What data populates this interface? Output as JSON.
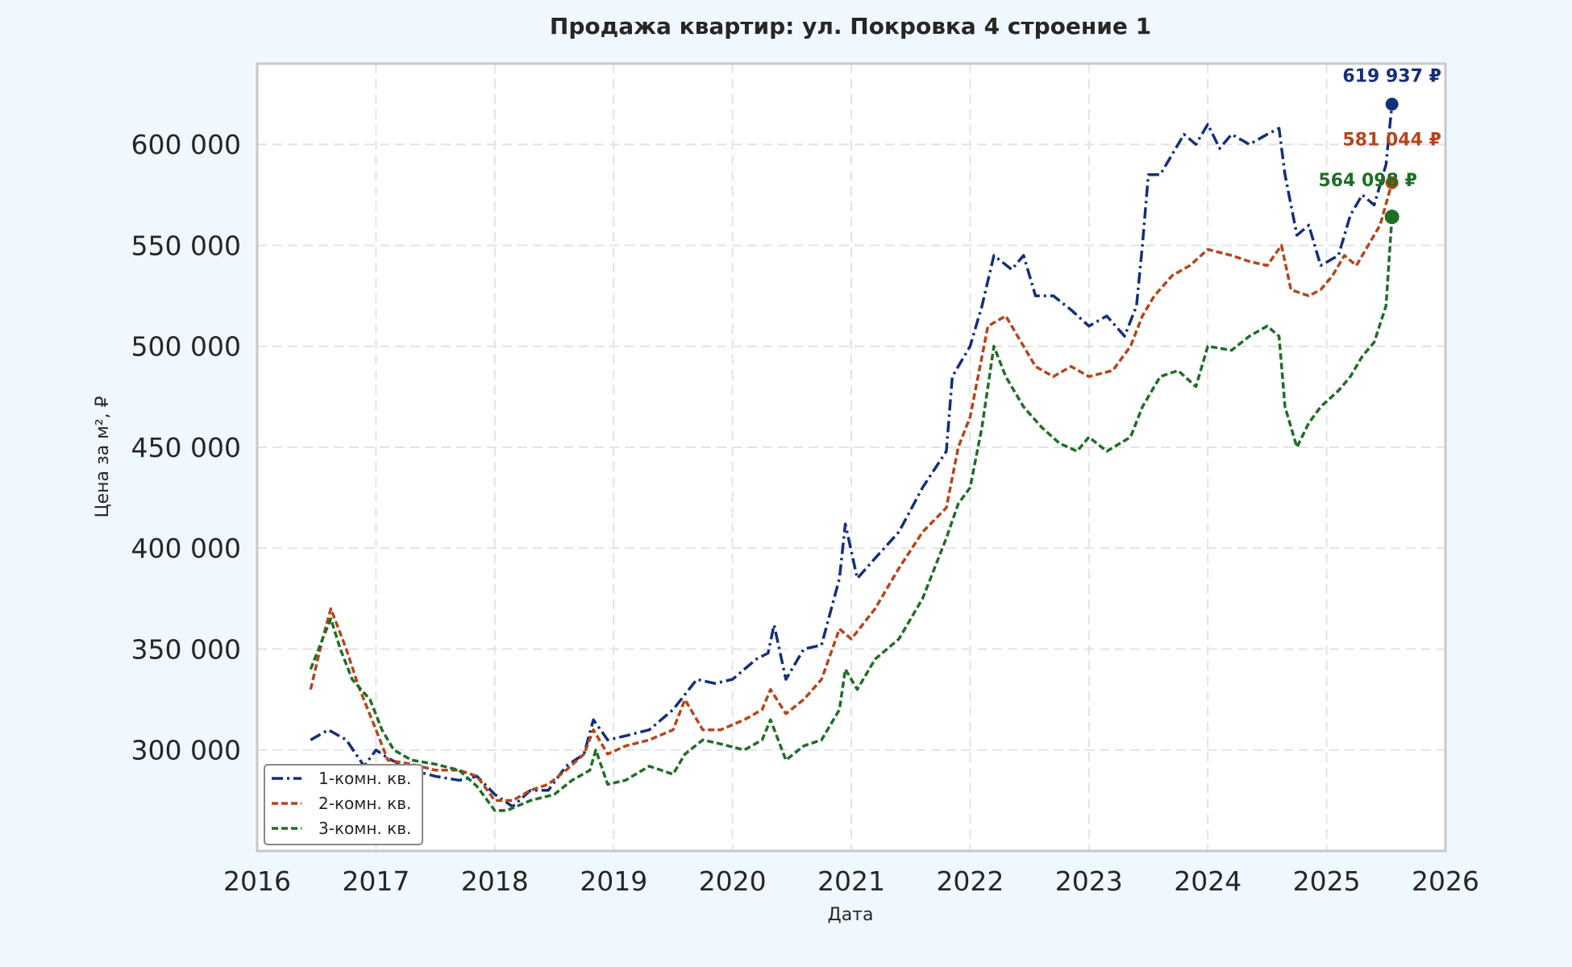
{
  "chart_data": {
    "type": "line",
    "title": "Продажа квартир: ул. Покровка 4 строение 1",
    "xlabel": "Дата",
    "ylabel": "Цена за м², ₽",
    "xlim": [
      2016,
      2026
    ],
    "ylim": [
      250000,
      640000
    ],
    "x_ticks": [
      "2016",
      "2017",
      "2018",
      "2019",
      "2020",
      "2021",
      "2022",
      "2023",
      "2024",
      "2025",
      "2026"
    ],
    "y_ticks": [
      "300 000",
      "350 000",
      "400 000",
      "450 000",
      "500 000",
      "550 000",
      "600 000"
    ],
    "y_tick_values": [
      300000,
      350000,
      400000,
      450000,
      500000,
      550000,
      600000
    ],
    "grid": true,
    "legend_position": "lower-left",
    "series": [
      {
        "name": "1-комн. кв.",
        "color": "#142f7a",
        "style": "dash-dot",
        "points": [
          [
            2016.45,
            305000
          ],
          [
            2016.6,
            310000
          ],
          [
            2016.75,
            305000
          ],
          [
            2016.9,
            292000
          ],
          [
            2017.0,
            300000
          ],
          [
            2017.1,
            296000
          ],
          [
            2017.3,
            290000
          ],
          [
            2017.5,
            287000
          ],
          [
            2017.7,
            285000
          ],
          [
            2017.85,
            287000
          ],
          [
            2018.0,
            278000
          ],
          [
            2018.15,
            272000
          ],
          [
            2018.3,
            280000
          ],
          [
            2018.45,
            280000
          ],
          [
            2018.6,
            292000
          ],
          [
            2018.75,
            298000
          ],
          [
            2018.83,
            315000
          ],
          [
            2018.95,
            305000
          ],
          [
            2019.1,
            307000
          ],
          [
            2019.3,
            310000
          ],
          [
            2019.5,
            320000
          ],
          [
            2019.7,
            335000
          ],
          [
            2019.85,
            333000
          ],
          [
            2020.0,
            335000
          ],
          [
            2020.2,
            345000
          ],
          [
            2020.3,
            348000
          ],
          [
            2020.35,
            362000
          ],
          [
            2020.45,
            335000
          ],
          [
            2020.6,
            350000
          ],
          [
            2020.75,
            352000
          ],
          [
            2020.9,
            385000
          ],
          [
            2020.95,
            412000
          ],
          [
            2021.05,
            385000
          ],
          [
            2021.2,
            395000
          ],
          [
            2021.4,
            408000
          ],
          [
            2021.6,
            430000
          ],
          [
            2021.8,
            448000
          ],
          [
            2021.85,
            485000
          ],
          [
            2022.0,
            500000
          ],
          [
            2022.1,
            520000
          ],
          [
            2022.2,
            545000
          ],
          [
            2022.35,
            538000
          ],
          [
            2022.45,
            545000
          ],
          [
            2022.55,
            525000
          ],
          [
            2022.7,
            525000
          ],
          [
            2022.85,
            518000
          ],
          [
            2023.0,
            510000
          ],
          [
            2023.15,
            515000
          ],
          [
            2023.3,
            505000
          ],
          [
            2023.4,
            520000
          ],
          [
            2023.45,
            550000
          ],
          [
            2023.5,
            585000
          ],
          [
            2023.6,
            585000
          ],
          [
            2023.7,
            595000
          ],
          [
            2023.8,
            605000
          ],
          [
            2023.9,
            600000
          ],
          [
            2024.0,
            610000
          ],
          [
            2024.1,
            598000
          ],
          [
            2024.2,
            605000
          ],
          [
            2024.35,
            600000
          ],
          [
            2024.5,
            605000
          ],
          [
            2024.6,
            608000
          ],
          [
            2024.65,
            585000
          ],
          [
            2024.75,
            555000
          ],
          [
            2024.85,
            560000
          ],
          [
            2024.95,
            540000
          ],
          [
            2025.1,
            545000
          ],
          [
            2025.2,
            565000
          ],
          [
            2025.3,
            575000
          ],
          [
            2025.4,
            570000
          ],
          [
            2025.5,
            590000
          ],
          [
            2025.55,
            619937
          ]
        ]
      },
      {
        "name": "2-комн. кв.",
        "color": "#b5451b",
        "style": "dashed",
        "points": [
          [
            2016.45,
            330000
          ],
          [
            2016.55,
            355000
          ],
          [
            2016.62,
            370000
          ],
          [
            2016.75,
            350000
          ],
          [
            2016.85,
            332000
          ],
          [
            2017.0,
            310000
          ],
          [
            2017.1,
            295000
          ],
          [
            2017.3,
            293000
          ],
          [
            2017.5,
            290000
          ],
          [
            2017.7,
            290000
          ],
          [
            2017.85,
            287000
          ],
          [
            2018.0,
            275000
          ],
          [
            2018.15,
            275000
          ],
          [
            2018.3,
            280000
          ],
          [
            2018.45,
            283000
          ],
          [
            2018.6,
            290000
          ],
          [
            2018.75,
            298000
          ],
          [
            2018.83,
            310000
          ],
          [
            2018.95,
            298000
          ],
          [
            2019.1,
            302000
          ],
          [
            2019.3,
            305000
          ],
          [
            2019.5,
            310000
          ],
          [
            2019.6,
            325000
          ],
          [
            2019.75,
            310000
          ],
          [
            2019.9,
            310000
          ],
          [
            2020.1,
            315000
          ],
          [
            2020.25,
            320000
          ],
          [
            2020.32,
            330000
          ],
          [
            2020.45,
            318000
          ],
          [
            2020.6,
            325000
          ],
          [
            2020.75,
            335000
          ],
          [
            2020.9,
            360000
          ],
          [
            2021.0,
            355000
          ],
          [
            2021.2,
            370000
          ],
          [
            2021.4,
            390000
          ],
          [
            2021.6,
            408000
          ],
          [
            2021.8,
            420000
          ],
          [
            2021.9,
            450000
          ],
          [
            2022.0,
            465000
          ],
          [
            2022.15,
            510000
          ],
          [
            2022.3,
            515000
          ],
          [
            2022.45,
            500000
          ],
          [
            2022.55,
            490000
          ],
          [
            2022.7,
            485000
          ],
          [
            2022.85,
            490000
          ],
          [
            2023.0,
            485000
          ],
          [
            2023.2,
            488000
          ],
          [
            2023.35,
            500000
          ],
          [
            2023.45,
            515000
          ],
          [
            2023.55,
            525000
          ],
          [
            2023.7,
            535000
          ],
          [
            2023.85,
            540000
          ],
          [
            2024.0,
            548000
          ],
          [
            2024.2,
            545000
          ],
          [
            2024.35,
            542000
          ],
          [
            2024.5,
            540000
          ],
          [
            2024.62,
            550000
          ],
          [
            2024.7,
            528000
          ],
          [
            2024.85,
            525000
          ],
          [
            2024.95,
            528000
          ],
          [
            2025.05,
            535000
          ],
          [
            2025.15,
            545000
          ],
          [
            2025.25,
            540000
          ],
          [
            2025.35,
            550000
          ],
          [
            2025.45,
            560000
          ],
          [
            2025.55,
            581044
          ]
        ]
      },
      {
        "name": "3-комн. кв.",
        "color": "#1e6e27",
        "style": "dashed",
        "points": [
          [
            2016.45,
            340000
          ],
          [
            2016.55,
            355000
          ],
          [
            2016.62,
            365000
          ],
          [
            2016.7,
            350000
          ],
          [
            2016.8,
            335000
          ],
          [
            2016.95,
            325000
          ],
          [
            2017.05,
            310000
          ],
          [
            2017.15,
            300000
          ],
          [
            2017.3,
            295000
          ],
          [
            2017.5,
            293000
          ],
          [
            2017.7,
            290000
          ],
          [
            2017.85,
            282000
          ],
          [
            2018.0,
            270000
          ],
          [
            2018.1,
            270000
          ],
          [
            2018.3,
            275000
          ],
          [
            2018.5,
            278000
          ],
          [
            2018.65,
            285000
          ],
          [
            2018.8,
            290000
          ],
          [
            2018.85,
            300000
          ],
          [
            2018.95,
            283000
          ],
          [
            2019.1,
            285000
          ],
          [
            2019.3,
            292000
          ],
          [
            2019.5,
            288000
          ],
          [
            2019.6,
            298000
          ],
          [
            2019.75,
            305000
          ],
          [
            2019.9,
            303000
          ],
          [
            2020.1,
            300000
          ],
          [
            2020.25,
            305000
          ],
          [
            2020.32,
            315000
          ],
          [
            2020.45,
            295000
          ],
          [
            2020.6,
            302000
          ],
          [
            2020.75,
            305000
          ],
          [
            2020.9,
            320000
          ],
          [
            2020.95,
            340000
          ],
          [
            2021.05,
            330000
          ],
          [
            2021.2,
            345000
          ],
          [
            2021.4,
            355000
          ],
          [
            2021.6,
            375000
          ],
          [
            2021.8,
            405000
          ],
          [
            2021.9,
            422000
          ],
          [
            2022.0,
            430000
          ],
          [
            2022.1,
            460000
          ],
          [
            2022.2,
            500000
          ],
          [
            2022.3,
            485000
          ],
          [
            2022.45,
            470000
          ],
          [
            2022.6,
            460000
          ],
          [
            2022.75,
            452000
          ],
          [
            2022.9,
            448000
          ],
          [
            2023.0,
            455000
          ],
          [
            2023.15,
            448000
          ],
          [
            2023.35,
            455000
          ],
          [
            2023.45,
            470000
          ],
          [
            2023.6,
            485000
          ],
          [
            2023.75,
            488000
          ],
          [
            2023.9,
            480000
          ],
          [
            2024.0,
            500000
          ],
          [
            2024.2,
            498000
          ],
          [
            2024.35,
            505000
          ],
          [
            2024.5,
            510000
          ],
          [
            2024.6,
            505000
          ],
          [
            2024.65,
            470000
          ],
          [
            2024.75,
            450000
          ],
          [
            2024.85,
            462000
          ],
          [
            2024.95,
            470000
          ],
          [
            2025.1,
            478000
          ],
          [
            2025.2,
            485000
          ],
          [
            2025.3,
            495000
          ],
          [
            2025.4,
            502000
          ],
          [
            2025.5,
            520000
          ],
          [
            2025.55,
            564098
          ]
        ]
      }
    ],
    "end_labels": [
      {
        "text": "619 937 ₽",
        "color": "#142f7a",
        "x": 2025.55,
        "y": 619937
      },
      {
        "text": "581 044 ₽",
        "color": "#b5451b",
        "x": 2025.55,
        "y": 581044
      },
      {
        "text": "564 098 ₽",
        "color": "#1e6e27",
        "x": 2025.55,
        "y": 564098
      }
    ]
  }
}
